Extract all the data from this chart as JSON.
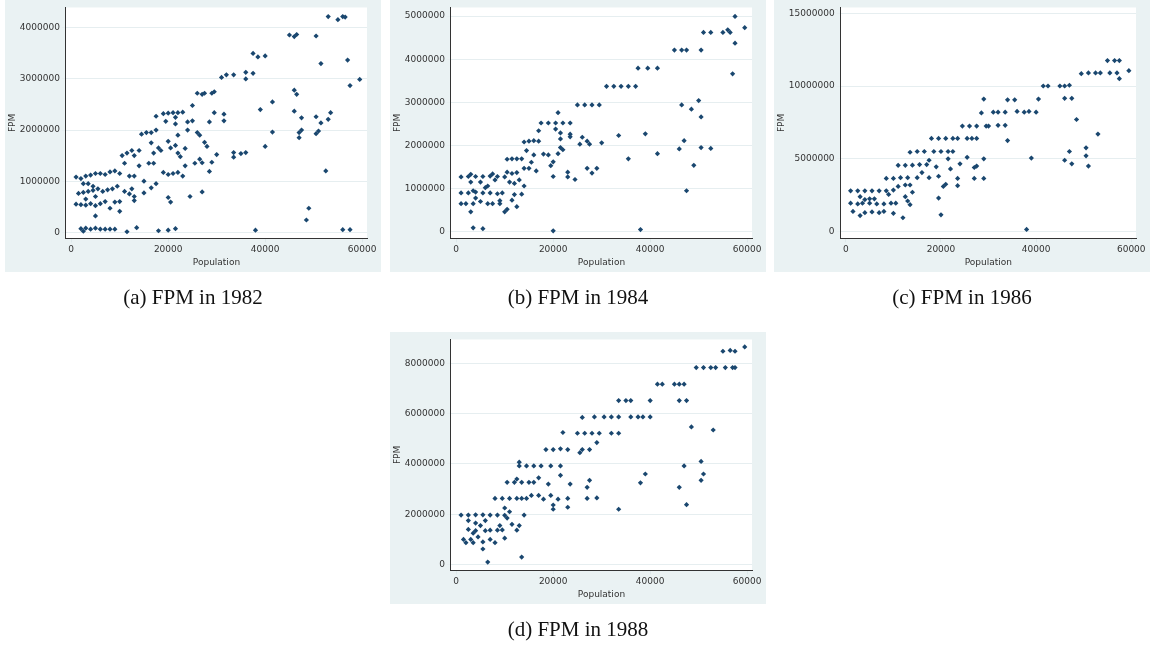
{
  "chart_data": [
    {
      "type": "scatter",
      "title": "(a) FPM in 1982",
      "xlabel": "Population",
      "ylabel": "FPM",
      "color": "#1a476f",
      "marker": "diamond",
      "grid": "y",
      "xlim": [
        -1100,
        61000
      ],
      "xticks": [
        0,
        20000,
        40000,
        60000
      ],
      "ylim": [
        -120000,
        4400000
      ],
      "yticks": [
        0,
        1000000,
        2000000,
        3000000,
        4000000
      ],
      "x": [
        1000,
        2000,
        3000,
        4000,
        5000,
        6000,
        7000,
        8000,
        9000,
        10000,
        1500,
        2500,
        3500,
        4500,
        5500,
        6500,
        7500,
        8500,
        9500,
        1000,
        2000,
        3000,
        4000,
        5000,
        6000,
        7000,
        8000,
        9000,
        10000,
        2500,
        3500,
        4500,
        3000,
        5000,
        5000,
        10000,
        2000,
        2500,
        3000,
        4000,
        5000,
        6000,
        7000,
        8000,
        9000,
        11500,
        13500,
        18000,
        20000,
        21500,
        10500,
        11500,
        12500,
        13000,
        11000,
        12000,
        13000,
        11000,
        12000,
        13000,
        12500,
        13000,
        14000,
        15000,
        15000,
        14000,
        14500,
        15500,
        16500,
        17500,
        16500,
        17000,
        16000,
        17000,
        16500,
        17500,
        18000,
        17500,
        19000,
        20000,
        21000,
        22000,
        23000,
        21500,
        19500,
        21500,
        22000,
        20000,
        21500,
        20500,
        22000,
        22500,
        18500,
        19000,
        20000,
        21000,
        22000,
        23000,
        23500,
        23500,
        24000,
        24000,
        20000,
        20500,
        24500,
        25000,
        25000,
        26000,
        27000,
        27500,
        26500,
        26000,
        25500,
        26500,
        27000,
        27500,
        28000,
        27000,
        28500,
        29000,
        29500,
        29500,
        29000,
        28500,
        30000,
        31000,
        32000,
        33500,
        31500,
        31500,
        33500,
        33500,
        35000,
        36000,
        36000,
        36000,
        37500,
        37500,
        38500,
        40000,
        38000,
        39000,
        40000,
        41500,
        41500,
        45000,
        46000,
        46500,
        50500,
        46000,
        46500,
        46000,
        47500,
        47000,
        47500,
        47000,
        48500,
        49000,
        50500,
        50500,
        51000,
        51500,
        51500,
        52500,
        53000,
        53500,
        53000,
        55000,
        56000,
        56500,
        57000,
        57500,
        59500,
        56000,
        57500
      ],
      "values": [
        1080000,
        1050000,
        1100000,
        1120000,
        1150000,
        1150000,
        1130000,
        1180000,
        1200000,
        1150000,
        760000,
        780000,
        800000,
        820000,
        850000,
        800000,
        830000,
        850000,
        900000,
        550000,
        540000,
        530000,
        560000,
        520000,
        560000,
        600000,
        470000,
        590000,
        600000,
        950000,
        950000,
        900000,
        650000,
        700000,
        320000,
        410000,
        70000,
        20000,
        80000,
        60000,
        80000,
        60000,
        60000,
        60000,
        60000,
        10000,
        90000,
        30000,
        40000,
        70000,
        1500000,
        1550000,
        1600000,
        1500000,
        1350000,
        1100000,
        1100000,
        800000,
        750000,
        700000,
        850000,
        620000,
        1300000,
        1000000,
        770000,
        1600000,
        1920000,
        1950000,
        1950000,
        2000000,
        1750000,
        1550000,
        1350000,
        1350000,
        870000,
        950000,
        1650000,
        2270000,
        2320000,
        2330000,
        2340000,
        2340000,
        2350000,
        2250000,
        2170000,
        2120000,
        1900000,
        1780000,
        1700000,
        1650000,
        1550000,
        1480000,
        1600000,
        1170000,
        1130000,
        1150000,
        1170000,
        1100000,
        1300000,
        1640000,
        2000000,
        2160000,
        680000,
        590000,
        700000,
        2480000,
        2180000,
        2720000,
        2700000,
        2720000,
        1900000,
        1950000,
        1350000,
        1430000,
        1360000,
        1760000,
        1680000,
        790000,
        2160000,
        2720000,
        2750000,
        2340000,
        1370000,
        1190000,
        1520000,
        3030000,
        3080000,
        3080000,
        2180000,
        2310000,
        1560000,
        1470000,
        1540000,
        1560000,
        3130000,
        3000000,
        3110000,
        3500000,
        3430000,
        3450000,
        40000,
        2400000,
        1680000,
        2550000,
        1960000,
        3860000,
        3830000,
        3870000,
        3840000,
        2780000,
        2700000,
        2370000,
        2240000,
        1950000,
        2000000,
        1850000,
        240000,
        470000,
        2260000,
        1930000,
        1980000,
        3300000,
        2140000,
        1200000,
        2210000,
        2340000,
        4220000,
        4160000,
        4220000,
        4210000,
        3370000,
        2870000,
        2990000,
        50000,
        50000
      ]
    },
    {
      "type": "scatter",
      "title": "(b) FPM in 1984",
      "xlabel": "Population",
      "ylabel": "FPM",
      "color": "#1a476f",
      "marker": "diamond",
      "grid": "y",
      "xlim": [
        -1100,
        61000
      ],
      "xticks": [
        0,
        20000,
        40000,
        60000
      ],
      "ylim": [
        -155000,
        5200000
      ],
      "yticks": [
        0,
        1000000,
        2000000,
        3000000,
        4000000,
        5000000
      ],
      "x": [
        1000,
        2500,
        4000,
        5500,
        7000,
        8500,
        10000,
        3000,
        7500,
        1000,
        2500,
        4000,
        5500,
        7000,
        8500,
        9500,
        3500,
        6000,
        6500,
        5000,
        3000,
        8000,
        1000,
        2000,
        3500,
        5000,
        6500,
        7500,
        9000,
        10000,
        3000,
        9000,
        4000,
        3500,
        5500,
        20000,
        38000,
        10500,
        11500,
        12500,
        13500,
        10500,
        11500,
        12500,
        13000,
        11000,
        12000,
        14000,
        13500,
        12000,
        11500,
        12500,
        10500,
        14000,
        15000,
        16000,
        17000,
        14500,
        16000,
        15500,
        14000,
        15000,
        16500,
        17000,
        17500,
        19000,
        20500,
        22000,
        23500,
        21000,
        20500,
        21500,
        21500,
        21500,
        22000,
        23500,
        23500,
        18000,
        19000,
        19500,
        20000,
        21000,
        20000,
        23000,
        23000,
        24500,
        25000,
        26500,
        28000,
        29500,
        25500,
        26000,
        27000,
        27500,
        27000,
        28000,
        29000,
        30000,
        31000,
        32500,
        34000,
        35500,
        37000,
        33500,
        35500,
        37500,
        39500,
        41500,
        39000,
        41500,
        45000,
        46500,
        47500,
        50500,
        46500,
        47000,
        46000,
        48500,
        47500,
        49000,
        50000,
        50500,
        50500,
        52500,
        51000,
        52500,
        55000,
        56000,
        56500,
        57500,
        57500,
        57000,
        59500
      ],
      "values": [
        1270000,
        1280000,
        1280000,
        1280000,
        1290000,
        1280000,
        1270000,
        1330000,
        1340000,
        900000,
        900000,
        920000,
        900000,
        900000,
        880000,
        900000,
        950000,
        1020000,
        1060000,
        1150000,
        1150000,
        1200000,
        650000,
        650000,
        650000,
        700000,
        650000,
        650000,
        650000,
        460000,
        460000,
        720000,
        780000,
        90000,
        70000,
        20000,
        50000,
        1680000,
        1690000,
        1690000,
        1690000,
        1380000,
        1350000,
        1370000,
        1200000,
        1150000,
        1120000,
        1060000,
        870000,
        860000,
        730000,
        580000,
        520000,
        2080000,
        2100000,
        2110000,
        2100000,
        1880000,
        1780000,
        1610000,
        1470000,
        1470000,
        1410000,
        2340000,
        2520000,
        2520000,
        2520000,
        2520000,
        2520000,
        2760000,
        2380000,
        2290000,
        2150000,
        1950000,
        1900000,
        2200000,
        2260000,
        1800000,
        1780000,
        1530000,
        1620000,
        1810000,
        1280000,
        1380000,
        1270000,
        1210000,
        2940000,
        2940000,
        2940000,
        2940000,
        2030000,
        2190000,
        2100000,
        2030000,
        1470000,
        1360000,
        1470000,
        2060000,
        3370000,
        3370000,
        3370000,
        3370000,
        3370000,
        2230000,
        1690000,
        3790000,
        3790000,
        3790000,
        2270000,
        1810000,
        4210000,
        4210000,
        4210000,
        4210000,
        2940000,
        2110000,
        1920000,
        2840000,
        950000,
        1540000,
        3040000,
        2660000,
        1950000,
        1930000,
        4620000,
        4620000,
        4620000,
        4680000,
        4620000,
        4990000,
        4370000,
        3660000,
        4730000
      ]
    },
    {
      "type": "scatter",
      "title": "(c) FPM in 1986",
      "xlabel": "Population",
      "ylabel": "FPM",
      "color": "#1a476f",
      "marker": "diamond",
      "grid": "y",
      "xlim": [
        -1100,
        61000
      ],
      "xticks": [
        0,
        20000,
        40000,
        60000
      ],
      "ylim": [
        -470000,
        15400000
      ],
      "yticks": [
        0,
        5000000,
        10000000,
        15000000
      ],
      "x": [
        1000,
        2500,
        4000,
        5500,
        7000,
        8500,
        10000,
        1000,
        2500,
        3500,
        5000,
        6500,
        8000,
        9500,
        10500,
        4000,
        5000,
        6000,
        3000,
        1500,
        3000,
        4000,
        5500,
        7000,
        8000,
        10000,
        12000,
        9000,
        8500,
        10000,
        11500,
        13000,
        11000,
        12500,
        13000,
        13500,
        14000,
        13500,
        12500,
        11000,
        12500,
        14000,
        15500,
        17000,
        15000,
        16000,
        17500,
        17500,
        19000,
        13500,
        15000,
        16500,
        18500,
        20000,
        21500,
        22500,
        19500,
        19500,
        20000,
        20500,
        21000,
        21500,
        22000,
        23500,
        23500,
        24000,
        18000,
        19500,
        21000,
        22500,
        23500,
        24500,
        26000,
        27500,
        29500,
        30000,
        25500,
        26500,
        27500,
        25500,
        27000,
        27500,
        27000,
        29000,
        29000,
        28500,
        29000,
        31000,
        32000,
        33500,
        32000,
        33500,
        34000,
        34000,
        35500,
        36000,
        37500,
        38500,
        40000,
        40500,
        38000,
        39000,
        41500,
        42500,
        45000,
        46000,
        47000,
        46000,
        47500,
        48500,
        46000,
        47000,
        47500,
        49500,
        51000,
        52500,
        53500,
        50500,
        50500,
        51000,
        53000,
        55000,
        56500,
        57500,
        55500,
        57000,
        57500,
        59500
      ],
      "values": [
        2800000,
        2800000,
        2800000,
        2800000,
        2800000,
        2800000,
        2850000,
        1950000,
        1900000,
        1950000,
        1950000,
        1900000,
        1900000,
        1950000,
        1950000,
        2200000,
        2250000,
        2250000,
        2400000,
        1380000,
        1100000,
        1300000,
        1350000,
        1300000,
        1380000,
        1250000,
        950000,
        2550000,
        3650000,
        3650000,
        3700000,
        3700000,
        3100000,
        2400000,
        2100000,
        1850000,
        2700000,
        3200000,
        3200000,
        4550000,
        4550000,
        4560000,
        4600000,
        4600000,
        3700000,
        4050000,
        4900000,
        3700000,
        4450000,
        5450000,
        5500000,
        5500000,
        5500000,
        5500000,
        5500000,
        5500000,
        3800000,
        2300000,
        1150000,
        3100000,
        3250000,
        5000000,
        4300000,
        3650000,
        3150000,
        4650000,
        6400000,
        6400000,
        6400000,
        6400000,
        6400000,
        7250000,
        7250000,
        7250000,
        7250000,
        7250000,
        6400000,
        6400000,
        6400000,
        5100000,
        4400000,
        4500000,
        3650000,
        3650000,
        5000000,
        8150000,
        9100000,
        8200000,
        8200000,
        8200000,
        7300000,
        7300000,
        6250000,
        9050000,
        9050000,
        8250000,
        8200000,
        8250000,
        8200000,
        9100000,
        150000,
        5050000,
        10000000,
        10000000,
        10000000,
        10000000,
        10050000,
        9150000,
        9150000,
        7700000,
        4900000,
        5500000,
        4650000,
        10850000,
        10900000,
        10900000,
        10900000,
        5200000,
        5750000,
        4500000,
        6700000,
        11750000,
        11750000,
        11750000,
        10900000,
        10900000,
        10500000,
        11050000
      ]
    },
    {
      "type": "scatter",
      "title": "(d) FPM in 1988",
      "xlabel": "Population",
      "ylabel": "FPM",
      "color": "#1a476f",
      "marker": "diamond",
      "grid": "y",
      "xlim": [
        -1100,
        61000
      ],
      "xticks": [
        0,
        20000,
        40000,
        60000
      ],
      "ylim": [
        -230000,
        8950000
      ],
      "yticks": [
        0,
        2000000,
        4000000,
        6000000,
        8000000
      ],
      "x": [
        1000,
        2500,
        4000,
        5500,
        7000,
        8500,
        10000,
        2500,
        3500,
        4000,
        5000,
        6000,
        7000,
        8500,
        9500,
        1500,
        2000,
        3000,
        3500,
        4500,
        4000,
        2500,
        6000,
        5500,
        5500,
        6500,
        7000,
        8000,
        9000,
        10000,
        10500,
        11000,
        11500,
        12500,
        13000,
        13500,
        14000,
        8000,
        9500,
        11000,
        12500,
        13500,
        10000,
        10500,
        12000,
        13500,
        15000,
        16000,
        12500,
        14500,
        15500,
        17000,
        17000,
        18000,
        13000,
        14500,
        16000,
        17500,
        19500,
        21500,
        13000,
        19000,
        19500,
        20000,
        20000,
        21000,
        21500,
        23000,
        23000,
        23500,
        18500,
        20000,
        21500,
        23000,
        22000,
        25500,
        26000,
        27500,
        25000,
        26500,
        28000,
        29500,
        32000,
        33500,
        26000,
        28500,
        30500,
        32000,
        33500,
        27000,
        27000,
        27500,
        29000,
        29000,
        33500,
        33500,
        35000,
        36000,
        36000,
        37500,
        38500,
        40000,
        40000,
        38000,
        39000,
        41500,
        42500,
        45000,
        46000,
        47000,
        46000,
        47500,
        46000,
        47000,
        47500,
        48500,
        49500,
        51000,
        52500,
        53500,
        50500,
        50500,
        51000,
        53000,
        55000,
        56500,
        57500,
        55500,
        57000,
        57500,
        59500
      ],
      "values": [
        1970000,
        1970000,
        1980000,
        1980000,
        1970000,
        1970000,
        1960000,
        1400000,
        1250000,
        1350000,
        1550000,
        1350000,
        1370000,
        1370000,
        1380000,
        1000000,
        870000,
        1000000,
        870000,
        1100000,
        1650000,
        1750000,
        1750000,
        900000,
        620000,
        100000,
        1000000,
        870000,
        1550000,
        1050000,
        1850000,
        2100000,
        1600000,
        1370000,
        1550000,
        300000,
        1970000,
        2630000,
        2630000,
        2630000,
        2630000,
        2630000,
        2250000,
        3270000,
        3270000,
        3270000,
        3270000,
        3270000,
        3400000,
        2630000,
        2750000,
        2750000,
        3450000,
        2600000,
        3920000,
        3920000,
        3920000,
        3920000,
        3920000,
        3920000,
        4070000,
        3200000,
        2750000,
        2200000,
        2370000,
        2600000,
        3550000,
        2630000,
        2280000,
        3200000,
        4570000,
        4570000,
        4600000,
        4570000,
        5250000,
        4450000,
        4570000,
        4570000,
        5220000,
        5220000,
        5220000,
        5220000,
        5220000,
        5220000,
        5850000,
        5870000,
        5870000,
        5870000,
        5870000,
        3070000,
        2630000,
        3350000,
        4850000,
        2650000,
        2200000,
        6520000,
        6520000,
        6520000,
        5870000,
        5870000,
        5870000,
        5870000,
        6520000,
        3250000,
        3600000,
        7170000,
        7170000,
        7170000,
        7170000,
        7170000,
        6520000,
        6520000,
        3070000,
        3920000,
        2380000,
        5470000,
        7830000,
        7830000,
        7830000,
        7830000,
        4100000,
        3350000,
        3600000,
        5350000,
        8480000,
        8510000,
        8480000,
        7830000,
        7830000,
        7830000,
        8650000
      ]
    }
  ]
}
